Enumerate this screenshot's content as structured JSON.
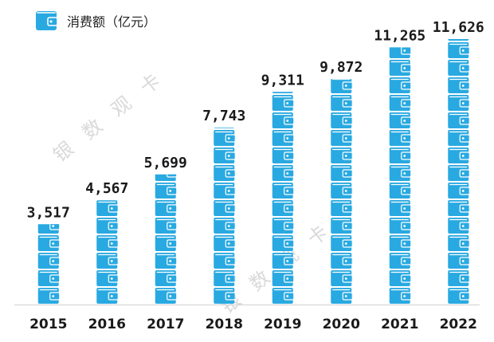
{
  "chart_data": {
    "type": "bar",
    "legend": {
      "label": "消费额（亿元）",
      "icon": "wallet-icon",
      "placement": "top-left"
    },
    "categories": [
      "2015",
      "2016",
      "2017",
      "2018",
      "2019",
      "2020",
      "2021",
      "2022"
    ],
    "values": [
      3517,
      4567,
      5699,
      7743,
      9311,
      9872,
      11265,
      11626
    ],
    "value_labels": [
      "3,517",
      "4,567",
      "5,699",
      "7,743",
      "9,311",
      "9,872",
      "11,265",
      "11,626"
    ],
    "ylim": [
      0,
      11626
    ],
    "grid": false,
    "bar_color": "#29A9E1",
    "watermark": "银数观卡"
  }
}
